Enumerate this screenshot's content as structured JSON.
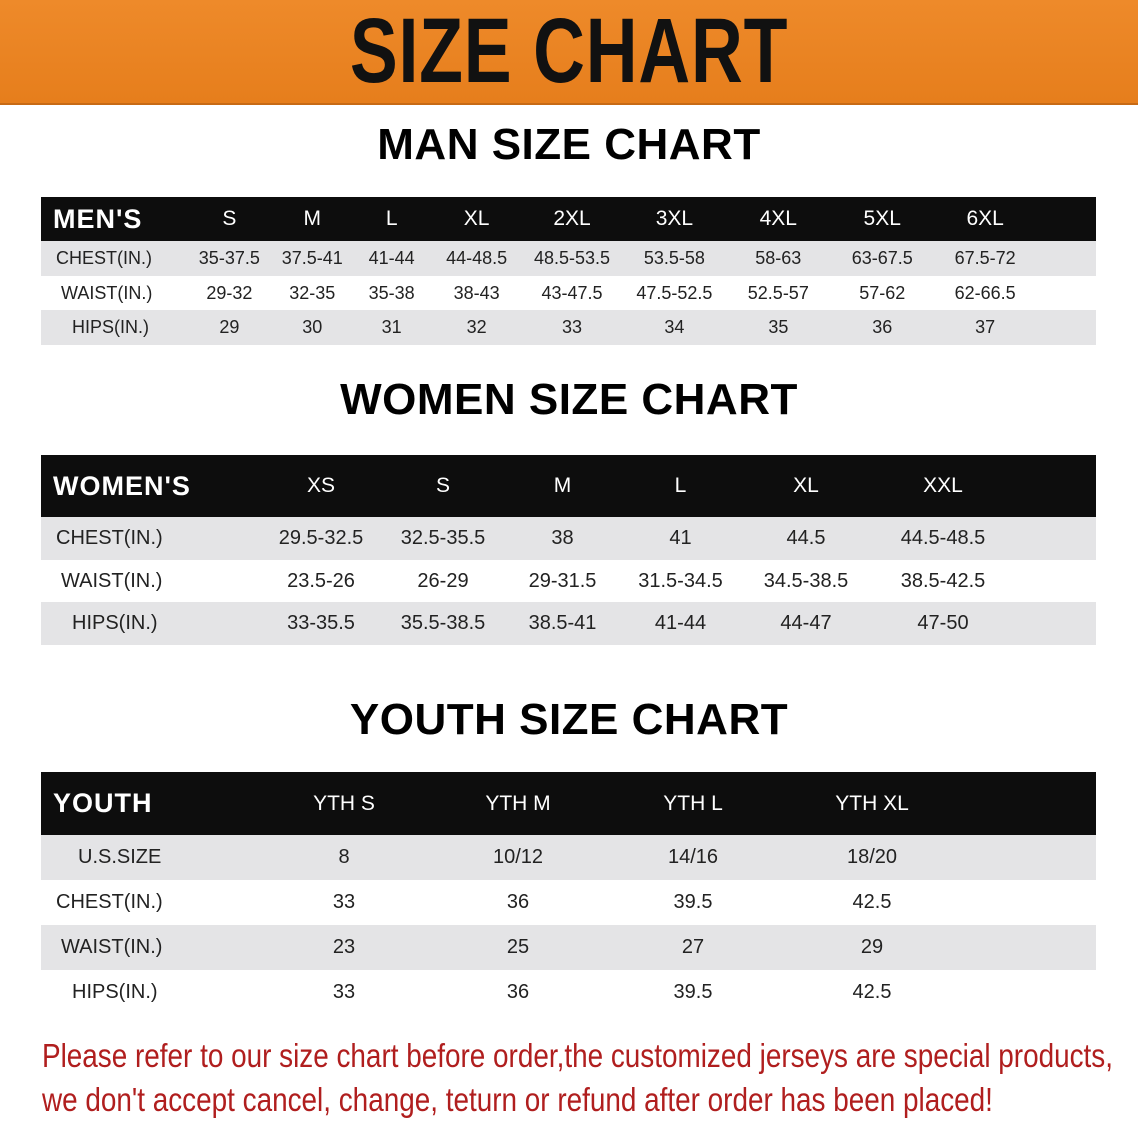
{
  "banner": {
    "title": "SIZE CHART",
    "color": "#e98420"
  },
  "men": {
    "title": "MAN SIZE CHART",
    "header": [
      "MEN'S",
      "S",
      "M",
      "L",
      "XL",
      "2XL",
      "3XL",
      "4XL",
      "5XL",
      "6XL"
    ],
    "rows": [
      {
        "label": "CHEST(IN.)",
        "values": [
          "35-37.5",
          "37.5-41",
          "41-44",
          "44-48.5",
          "48.5-53.5",
          "53.5-58",
          "58-63",
          "63-67.5",
          "67.5-72"
        ]
      },
      {
        "label": "WAIST(IN.)",
        "values": [
          "29-32",
          "32-35",
          "35-38",
          "38-43",
          "43-47.5",
          "47.5-52.5",
          "52.5-57",
          "57-62",
          "62-66.5"
        ]
      },
      {
        "label": "HIPS(IN.)",
        "values": [
          "29",
          "30",
          "31",
          "32",
          "33",
          "34",
          "35",
          "36",
          "37"
        ]
      }
    ]
  },
  "women": {
    "title": "WOMEN SIZE CHART",
    "header": [
      "WOMEN'S",
      "XS",
      "S",
      "M",
      "L",
      "XL",
      "XXL"
    ],
    "rows": [
      {
        "label": "CHEST(IN.)",
        "values": [
          "29.5-32.5",
          "32.5-35.5",
          "38",
          "41",
          "44.5",
          "44.5-48.5"
        ]
      },
      {
        "label": "WAIST(IN.)",
        "values": [
          "23.5-26",
          "26-29",
          "29-31.5",
          "31.5-34.5",
          "34.5-38.5",
          "38.5-42.5"
        ]
      },
      {
        "label": "HIPS(IN.)",
        "values": [
          "33-35.5",
          "35.5-38.5",
          "38.5-41",
          "41-44",
          "44-47",
          "47-50"
        ]
      }
    ]
  },
  "youth": {
    "title": "YOUTH SIZE CHART",
    "header": [
      "YOUTH",
      "YTH S",
      "YTH M",
      "YTH L",
      "YTH XL"
    ],
    "rows": [
      {
        "label": "U.S.SIZE",
        "values": [
          "8",
          "10/12",
          "14/16",
          "18/20"
        ]
      },
      {
        "label": "CHEST(IN.)",
        "values": [
          "33",
          "36",
          "39.5",
          "42.5"
        ]
      },
      {
        "label": "WAIST(IN.)",
        "values": [
          "23",
          "25",
          "27",
          "29"
        ]
      },
      {
        "label": "HIPS(IN.)",
        "values": [
          "33",
          "36",
          "39.5",
          "42.5"
        ]
      }
    ]
  },
  "footer": {
    "line1": "Please refer to our size chart before order,the customized jerseys are special products,",
    "line2": "we don't accept cancel, change, teturn or refund after order has been placed!",
    "color": "#b01e1e"
  }
}
